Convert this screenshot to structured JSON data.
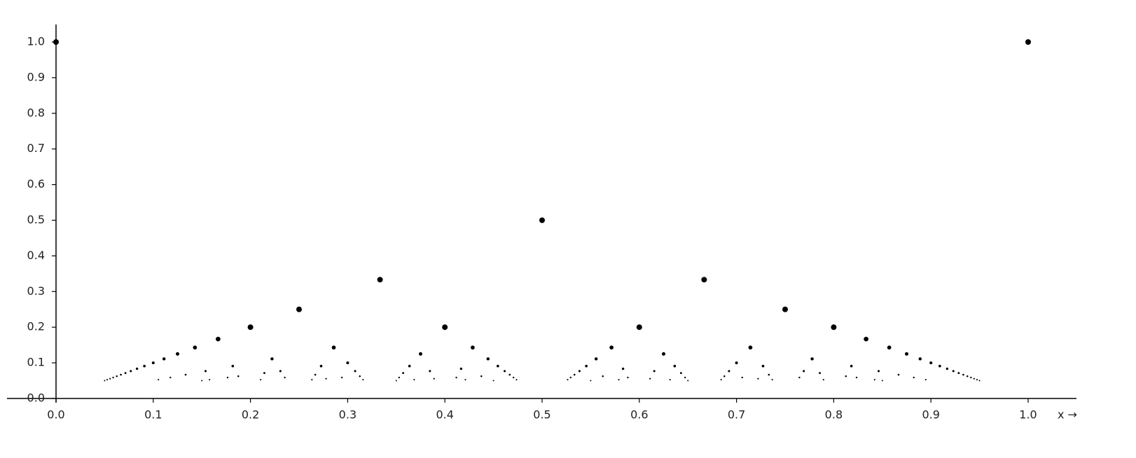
{
  "chart_data": {
    "type": "scatter",
    "xlabel": "x →",
    "color": "#000000",
    "xlim": [
      0,
      1
    ],
    "ylim": [
      0,
      1
    ],
    "xticks": [
      {
        "value": 0,
        "label": "0.0"
      },
      0.1,
      0.2,
      0.3,
      0.4,
      0.5,
      0.6,
      0.7,
      0.8,
      0.9,
      {
        "value": 1,
        "label": "1.0"
      }
    ],
    "yticks": [
      {
        "value": 0,
        "label": "0.0"
      },
      0.1,
      0.2,
      0.3,
      0.4,
      0.5,
      0.6,
      0.7,
      0.8,
      0.9,
      {
        "value": 1,
        "label": "1.0"
      }
    ],
    "x": [
      0,
      1,
      0.5,
      0.3333,
      0.6667,
      0.25,
      0.75,
      0.2,
      0.4,
      0.6,
      0.8,
      0.1667,
      0.8333,
      0.1429,
      0.2857,
      0.4286,
      0.5714,
      0.7143,
      0.8571,
      0.125,
      0.375,
      0.625,
      0.875,
      0.1111,
      0.2222,
      0.4444,
      0.5556,
      0.7778,
      0.8889,
      0.1,
      0.3,
      0.7,
      0.9,
      0.0909,
      0.1818,
      0.2727,
      0.3636,
      0.4545,
      0.5455,
      0.6364,
      0.7273,
      0.8182,
      0.9091,
      0.0833,
      0.4167,
      0.5833,
      0.9167,
      0.0769,
      0.1538,
      0.2308,
      0.3077,
      0.3846,
      0.4615,
      0.5385,
      0.6154,
      0.6923,
      0.7692,
      0.8462,
      0.9231,
      0.0714,
      0.2143,
      0.3571,
      0.6429,
      0.7857,
      0.9286,
      0.0667,
      0.1333,
      0.2667,
      0.4667,
      0.5333,
      0.7333,
      0.8667,
      0.9333,
      0.0625,
      0.1875,
      0.3125,
      0.4375,
      0.5625,
      0.6875,
      0.8125,
      0.9375,
      0.0588,
      0.1176,
      0.1765,
      0.2353,
      0.2941,
      0.3529,
      0.4118,
      0.4706,
      0.5294,
      0.5882,
      0.6471,
      0.7059,
      0.7647,
      0.8235,
      0.8824,
      0.9412,
      0.0556,
      0.2778,
      0.3889,
      0.6111,
      0.7222,
      0.9444,
      0.0526,
      0.1053,
      0.1579,
      0.2105,
      0.2632,
      0.3158,
      0.3684,
      0.4211,
      0.4737,
      0.5263,
      0.5789,
      0.6316,
      0.6842,
      0.7368,
      0.7895,
      0.8421,
      0.8947,
      0.9474,
      0.05,
      0.15,
      0.35,
      0.45,
      0.55,
      0.65,
      0.85,
      0.95
    ],
    "y": [
      1,
      1,
      0.5,
      0.3333,
      0.3333,
      0.25,
      0.25,
      0.2,
      0.2,
      0.2,
      0.2,
      0.1667,
      0.1667,
      0.1429,
      0.1429,
      0.1429,
      0.1429,
      0.1429,
      0.1429,
      0.125,
      0.125,
      0.125,
      0.125,
      0.1111,
      0.1111,
      0.1111,
      0.1111,
      0.1111,
      0.1111,
      0.1,
      0.1,
      0.1,
      0.1,
      0.0909,
      0.0909,
      0.0909,
      0.0909,
      0.0909,
      0.0909,
      0.0909,
      0.0909,
      0.0909,
      0.0909,
      0.0833,
      0.0833,
      0.0833,
      0.0833,
      0.0769,
      0.0769,
      0.0769,
      0.0769,
      0.0769,
      0.0769,
      0.0769,
      0.0769,
      0.0769,
      0.0769,
      0.0769,
      0.0769,
      0.0714,
      0.0714,
      0.0714,
      0.0714,
      0.0714,
      0.0714,
      0.0667,
      0.0667,
      0.0667,
      0.0667,
      0.0667,
      0.0667,
      0.0667,
      0.0667,
      0.0625,
      0.0625,
      0.0625,
      0.0625,
      0.0625,
      0.0625,
      0.0625,
      0.0625,
      0.0588,
      0.0588,
      0.0588,
      0.0588,
      0.0588,
      0.0588,
      0.0588,
      0.0588,
      0.0588,
      0.0588,
      0.0588,
      0.0588,
      0.0588,
      0.0588,
      0.0588,
      0.0588,
      0.0556,
      0.0556,
      0.0556,
      0.0556,
      0.0556,
      0.0556,
      0.0526,
      0.0526,
      0.0526,
      0.0526,
      0.0526,
      0.0526,
      0.0526,
      0.0526,
      0.0526,
      0.0526,
      0.0526,
      0.0526,
      0.0526,
      0.0526,
      0.0526,
      0.0526,
      0.0526,
      0.0526,
      0.05,
      0.05,
      0.05,
      0.05,
      0.05,
      0.05,
      0.05,
      0.05
    ]
  }
}
